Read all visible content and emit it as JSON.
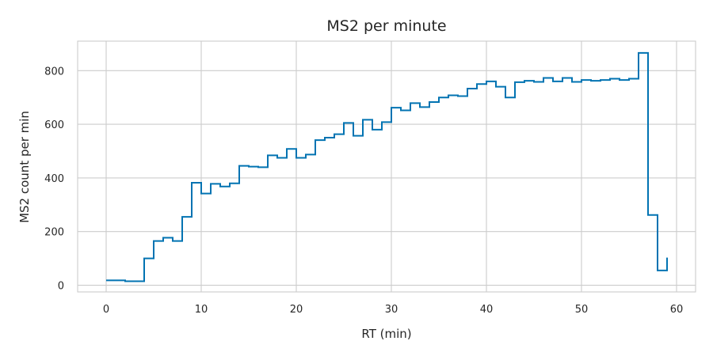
{
  "chart_data": {
    "type": "line",
    "step": "post",
    "title": "MS2 per minute",
    "xlabel": "RT (min)",
    "ylabel": "MS2 count per min",
    "xlim": [
      -3,
      62
    ],
    "ylim": [
      -25,
      910
    ],
    "xticks": [
      0,
      10,
      20,
      30,
      40,
      50,
      60
    ],
    "yticks": [
      0,
      200,
      400,
      600,
      800
    ],
    "xtick_labels": [
      "0",
      "10",
      "20",
      "30",
      "40",
      "50",
      "60"
    ],
    "ytick_labels": [
      "0",
      "200",
      "400",
      "600",
      "800"
    ],
    "grid": true,
    "color": "#0173b2",
    "x": [
      0,
      1,
      2,
      3,
      4,
      5,
      6,
      7,
      8,
      9,
      10,
      11,
      12,
      13,
      14,
      15,
      16,
      17,
      18,
      19,
      20,
      21,
      22,
      23,
      24,
      25,
      26,
      27,
      28,
      29,
      30,
      31,
      32,
      33,
      34,
      35,
      36,
      37,
      38,
      39,
      40,
      41,
      42,
      43,
      44,
      45,
      46,
      47,
      48,
      49,
      50,
      51,
      52,
      53,
      54,
      55,
      56,
      57,
      58,
      59
    ],
    "values": [
      18,
      18,
      15,
      15,
      100,
      165,
      177,
      165,
      255,
      382,
      342,
      378,
      368,
      380,
      445,
      442,
      440,
      484,
      475,
      508,
      475,
      487,
      541,
      550,
      563,
      605,
      557,
      617,
      580,
      608,
      662,
      652,
      679,
      664,
      683,
      700,
      708,
      705,
      733,
      750,
      760,
      740,
      700,
      757,
      762,
      758,
      773,
      760,
      773,
      758,
      765,
      762,
      765,
      770,
      765,
      770,
      866,
      262,
      55,
      103
    ]
  }
}
